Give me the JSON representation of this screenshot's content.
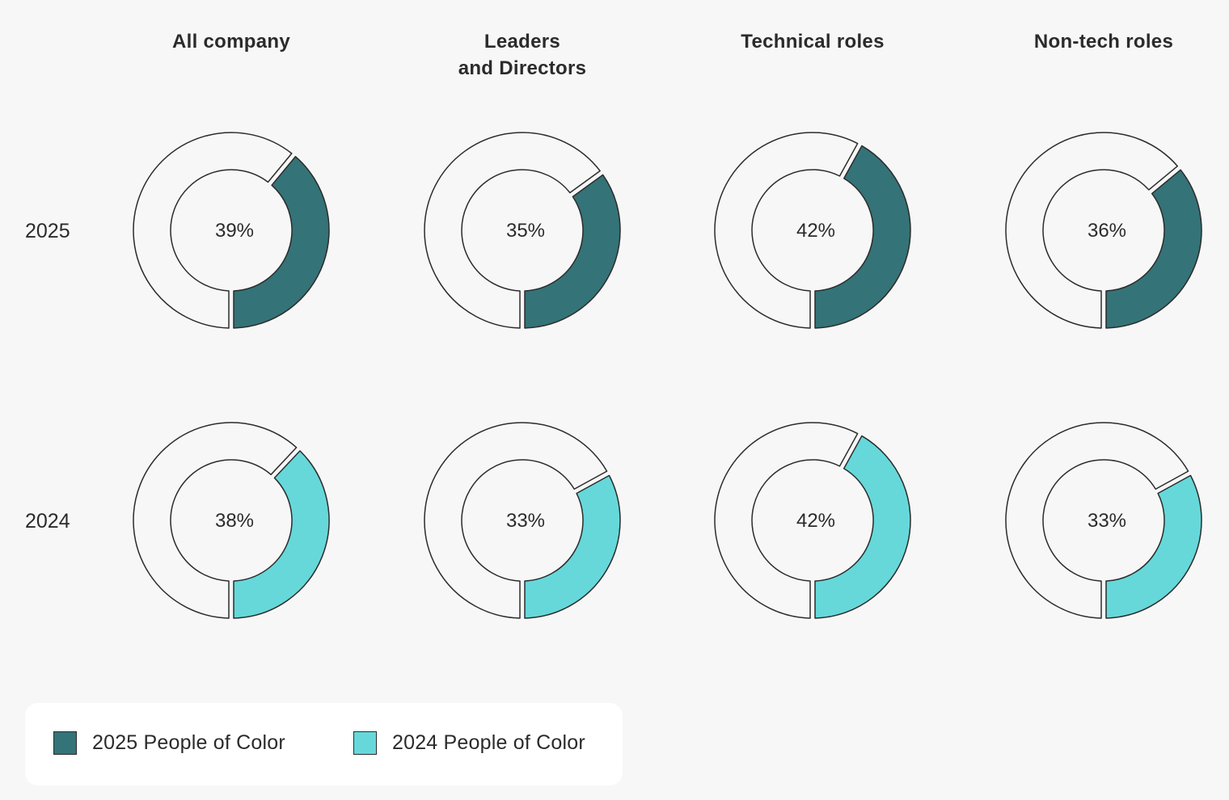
{
  "chart_data": {
    "type": "donut",
    "columns": [
      "All company",
      "Leaders\nand Directors",
      "Technical roles",
      "Non-tech roles"
    ],
    "rows": [
      "2025",
      "2024"
    ],
    "series": [
      {
        "name": "2025 People of Color",
        "year": "2025",
        "color": "#347377",
        "values": [
          39,
          35,
          42,
          36
        ],
        "labels": [
          "39%",
          "35%",
          "42%",
          "36%"
        ]
      },
      {
        "name": "2024 People of Color",
        "year": "2024",
        "color": "#66d8da",
        "values": [
          38,
          33,
          42,
          33
        ],
        "labels": [
          "38%",
          "33%",
          "42%",
          "33%"
        ]
      }
    ],
    "remainder_color": "#f7f7f7",
    "stroke_color": "#2b2b2b",
    "legend_position": "bottom-left"
  },
  "legend": {
    "items": [
      {
        "label": "2025 People of Color",
        "color": "#347377"
      },
      {
        "label": "2024 People of Color",
        "color": "#66d8da"
      }
    ]
  }
}
